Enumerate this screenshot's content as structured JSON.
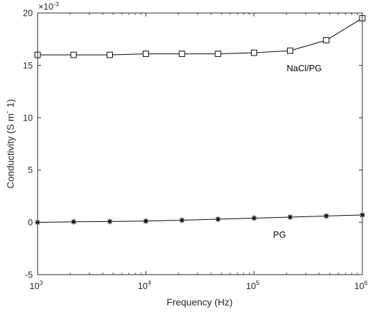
{
  "chart_data": {
    "type": "line",
    "title": "",
    "xlabel": "Frequency (Hz)",
    "ylabel": "Conductivity (S m´ 1)",
    "x_scale": "log",
    "xlim": [
      1000,
      1000000
    ],
    "ylim": [
      -5,
      20
    ],
    "y_multiplier": "×10",
    "y_multiplier_exponent": "-3",
    "grid": false,
    "x_ticks": [
      {
        "base": "10",
        "exp": "3",
        "value": 1000
      },
      {
        "base": "10",
        "exp": "4",
        "value": 10000
      },
      {
        "base": "10",
        "exp": "5",
        "value": 100000
      },
      {
        "base": "10",
        "exp": "6",
        "value": 1000000
      }
    ],
    "y_ticks": [
      "-5",
      "0",
      "5",
      "10",
      "15",
      "20"
    ],
    "series": [
      {
        "name": "NaCl/PG",
        "marker": "square",
        "x": [
          1000,
          2154,
          4642,
          10000,
          21544,
          46416,
          100000,
          215443,
          464159,
          1000000
        ],
        "values": [
          16.0,
          16.0,
          16.0,
          16.1,
          16.1,
          16.1,
          16.2,
          16.4,
          17.4,
          19.5
        ]
      },
      {
        "name": "PG",
        "marker": "asterisk",
        "x": [
          1000,
          2154,
          4642,
          10000,
          21544,
          46416,
          100000,
          215443,
          464159,
          1000000
        ],
        "values": [
          0.0,
          0.05,
          0.08,
          0.12,
          0.2,
          0.3,
          0.4,
          0.5,
          0.6,
          0.7
        ]
      }
    ],
    "annotations": [
      {
        "text": "NaCl/PG",
        "x": 200000,
        "y": 14.7
      },
      {
        "text": "PG",
        "x": 150000,
        "y": -1.2
      }
    ],
    "colors": {
      "line": "#000000",
      "axes": "#262626"
    }
  }
}
